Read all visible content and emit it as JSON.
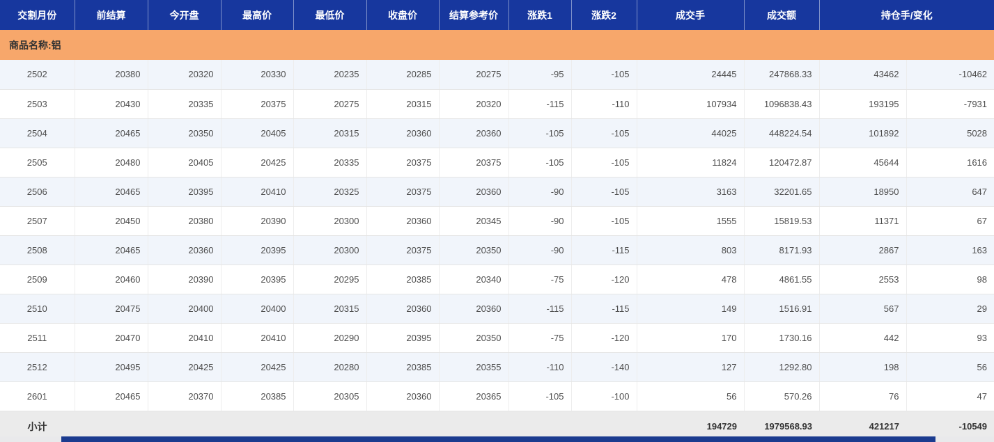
{
  "table": {
    "columns": [
      {
        "label": "交割月份",
        "span": 1
      },
      {
        "label": "前结算",
        "span": 1
      },
      {
        "label": "今开盘",
        "span": 1
      },
      {
        "label": "最高价",
        "span": 1
      },
      {
        "label": "最低价",
        "span": 1
      },
      {
        "label": "收盘价",
        "span": 1
      },
      {
        "label": "结算参考价",
        "span": 1
      },
      {
        "label": "涨跌1",
        "span": 1
      },
      {
        "label": "涨跌2",
        "span": 1
      },
      {
        "label": "成交手",
        "span": 1
      },
      {
        "label": "成交额",
        "span": 1
      },
      {
        "label": "持仓手/变化",
        "span": 2
      }
    ],
    "group_row": {
      "label": "商品名称:铝"
    },
    "rows": [
      [
        "2502",
        "20380",
        "20320",
        "20330",
        "20235",
        "20285",
        "20275",
        "-95",
        "-105",
        "24445",
        "247868.33",
        "43462",
        "-10462"
      ],
      [
        "2503",
        "20430",
        "20335",
        "20375",
        "20275",
        "20315",
        "20320",
        "-115",
        "-110",
        "107934",
        "1096838.43",
        "193195",
        "-7931"
      ],
      [
        "2504",
        "20465",
        "20350",
        "20405",
        "20315",
        "20360",
        "20360",
        "-105",
        "-105",
        "44025",
        "448224.54",
        "101892",
        "5028"
      ],
      [
        "2505",
        "20480",
        "20405",
        "20425",
        "20335",
        "20375",
        "20375",
        "-105",
        "-105",
        "11824",
        "120472.87",
        "45644",
        "1616"
      ],
      [
        "2506",
        "20465",
        "20395",
        "20410",
        "20325",
        "20375",
        "20360",
        "-90",
        "-105",
        "3163",
        "32201.65",
        "18950",
        "647"
      ],
      [
        "2507",
        "20450",
        "20380",
        "20390",
        "20300",
        "20360",
        "20345",
        "-90",
        "-105",
        "1555",
        "15819.53",
        "11371",
        "67"
      ],
      [
        "2508",
        "20465",
        "20360",
        "20395",
        "20300",
        "20375",
        "20350",
        "-90",
        "-115",
        "803",
        "8171.93",
        "2867",
        "163"
      ],
      [
        "2509",
        "20460",
        "20390",
        "20395",
        "20295",
        "20385",
        "20340",
        "-75",
        "-120",
        "478",
        "4861.55",
        "2553",
        "98"
      ],
      [
        "2510",
        "20475",
        "20400",
        "20400",
        "20315",
        "20360",
        "20360",
        "-115",
        "-115",
        "149",
        "1516.91",
        "567",
        "29"
      ],
      [
        "2511",
        "20470",
        "20410",
        "20410",
        "20290",
        "20395",
        "20350",
        "-75",
        "-120",
        "170",
        "1730.16",
        "442",
        "93"
      ],
      [
        "2512",
        "20495",
        "20425",
        "20425",
        "20280",
        "20385",
        "20355",
        "-110",
        "-140",
        "127",
        "1292.80",
        "198",
        "56"
      ],
      [
        "2601",
        "20465",
        "20370",
        "20385",
        "20305",
        "20360",
        "20365",
        "-105",
        "-100",
        "56",
        "570.26",
        "76",
        "47"
      ]
    ],
    "subtotal": {
      "label": "小计",
      "volume": "194729",
      "turnover": "1979568.93",
      "open_interest": "421217",
      "oi_change": "-10549"
    }
  },
  "colors": {
    "header_bg": "#17379E",
    "group_row_bg": "#F7A76B",
    "alt_row_bg": "#F1F5FB",
    "subtotal_bg": "#EBEBEB",
    "scrollbar_thumb": "#1B3B8F"
  }
}
